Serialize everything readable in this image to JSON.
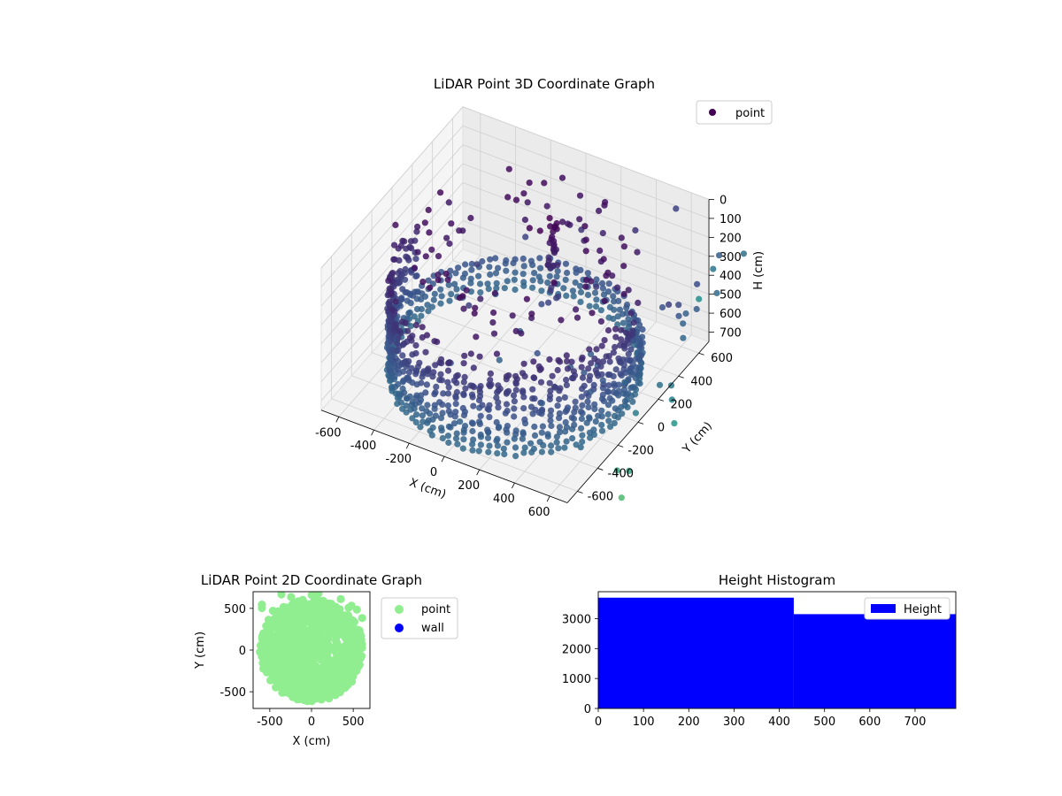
{
  "chart_data": [
    {
      "type": "scatter3d",
      "title": "LiDAR Point 3D Coordinate Graph",
      "xlabel": "X (cm)",
      "ylabel": "Y (cm)",
      "zlabel": "H (cm)",
      "xlim": [
        -700,
        700
      ],
      "ylim": [
        -700,
        700
      ],
      "zlim": [
        750,
        0
      ],
      "xticks": [
        -600,
        -400,
        -200,
        0,
        200,
        400,
        600
      ],
      "yticks": [
        -600,
        -400,
        -200,
        0,
        200,
        400,
        600
      ],
      "zticks": [
        0,
        100,
        200,
        300,
        400,
        500,
        600,
        700
      ],
      "z_axis_inverted": true,
      "grid": true,
      "colormap": "viridis",
      "legend": {
        "position": "top-right",
        "entries": [
          "point"
        ]
      },
      "series": [
        {
          "name": "point",
          "description_points": "cylindrical wall of points radius ~620 cm spanning H 0 to ~730 cm, dense ring near H ~730 cm, central vertical column near (100, 200), scattered outliers",
          "wall_radius": 620,
          "wall_h_range": [
            0,
            730
          ],
          "column_xy": [
            100,
            200
          ],
          "column_h_range": [
            0,
            450
          ]
        }
      ]
    },
    {
      "type": "scatter",
      "title": "LiDAR Point 2D Coordinate Graph",
      "xlabel": "X (cm)",
      "ylabel": "Y (cm)",
      "xlim": [
        -700,
        700
      ],
      "ylim": [
        -700,
        700
      ],
      "xticks": [
        -500,
        0,
        500
      ],
      "yticks": [
        -500,
        0,
        500
      ],
      "legend": {
        "position": "right",
        "entries": [
          "point",
          "wall"
        ]
      },
      "series": [
        {
          "name": "point",
          "color": "#90ee90",
          "shape": "filled disk radius ~620 cm with sparse points toward top"
        },
        {
          "name": "wall",
          "color": "#0000ff",
          "values": []
        }
      ]
    },
    {
      "type": "histogram",
      "title": "Height Histogram",
      "xlabel": "",
      "ylabel": "",
      "xlim": [
        0,
        790
      ],
      "ylim": [
        0,
        3900
      ],
      "xticks": [
        0,
        100,
        200,
        300,
        400,
        500,
        600,
        700
      ],
      "yticks": [
        0,
        1000,
        2000,
        3000
      ],
      "legend": {
        "position": "top-right",
        "entries": [
          "Height"
        ]
      },
      "color": "#0000ff",
      "bins": [
        {
          "start": 0,
          "end": 432,
          "count": 3700
        },
        {
          "start": 432,
          "end": 790,
          "count": 3150
        }
      ]
    }
  ]
}
